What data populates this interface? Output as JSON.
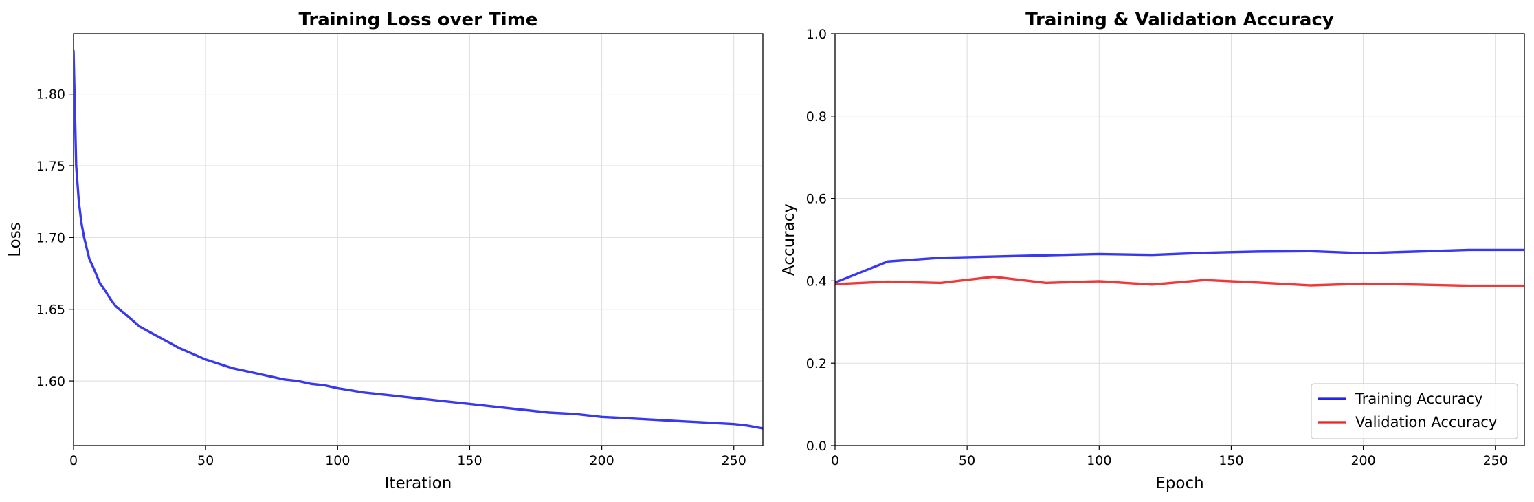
{
  "chart_data": [
    {
      "type": "line",
      "title": "Training Loss over Time",
      "xlabel": "Iteration",
      "ylabel": "Loss",
      "xlim": [
        0,
        261
      ],
      "ylim": [
        1.555,
        1.842
      ],
      "xticks": [
        0,
        50,
        100,
        150,
        200,
        250
      ],
      "yticks": [
        1.6,
        1.65,
        1.7,
        1.75,
        1.8
      ],
      "grid": true,
      "series": [
        {
          "color": "#2222ee",
          "x": [
            0,
            1,
            2,
            3,
            4,
            6,
            8,
            10,
            12,
            14,
            16,
            20,
            25,
            30,
            35,
            40,
            45,
            50,
            55,
            60,
            65,
            70,
            75,
            80,
            85,
            90,
            95,
            100,
            110,
            120,
            130,
            140,
            150,
            160,
            170,
            180,
            190,
            200,
            210,
            220,
            230,
            240,
            250,
            255,
            261
          ],
          "y": [
            1.83,
            1.75,
            1.725,
            1.71,
            1.7,
            1.685,
            1.677,
            1.668,
            1.663,
            1.657,
            1.652,
            1.646,
            1.638,
            1.633,
            1.628,
            1.623,
            1.619,
            1.615,
            1.612,
            1.609,
            1.607,
            1.605,
            1.603,
            1.601,
            1.6,
            1.598,
            1.597,
            1.595,
            1.592,
            1.59,
            1.588,
            1.586,
            1.584,
            1.582,
            1.58,
            1.578,
            1.577,
            1.575,
            1.574,
            1.573,
            1.572,
            1.571,
            1.57,
            1.569,
            1.567
          ]
        }
      ]
    },
    {
      "type": "line",
      "title": "Training & Validation Accuracy",
      "xlabel": "Epoch",
      "ylabel": "Accuracy",
      "xlim": [
        0,
        261
      ],
      "ylim": [
        0.0,
        1.0
      ],
      "xticks": [
        0,
        50,
        100,
        150,
        200,
        250
      ],
      "yticks": [
        0.0,
        0.2,
        0.4,
        0.6,
        0.8,
        1.0
      ],
      "grid": true,
      "legend": "bottom-right",
      "series": [
        {
          "name": "Training Accuracy",
          "color": "#2222ee",
          "x": [
            0,
            20,
            40,
            60,
            80,
            100,
            120,
            140,
            160,
            180,
            200,
            220,
            240,
            261
          ],
          "y": [
            0.396,
            0.447,
            0.456,
            0.459,
            0.462,
            0.465,
            0.463,
            0.468,
            0.471,
            0.472,
            0.467,
            0.471,
            0.475,
            0.475
          ]
        },
        {
          "name": "Validation Accuracy",
          "color": "#ee2222",
          "x": [
            0,
            20,
            40,
            60,
            80,
            100,
            120,
            140,
            160,
            180,
            200,
            220,
            240,
            261
          ],
          "y": [
            0.392,
            0.398,
            0.395,
            0.41,
            0.395,
            0.399,
            0.391,
            0.402,
            0.396,
            0.389,
            0.393,
            0.391,
            0.388,
            0.388
          ]
        }
      ]
    }
  ]
}
